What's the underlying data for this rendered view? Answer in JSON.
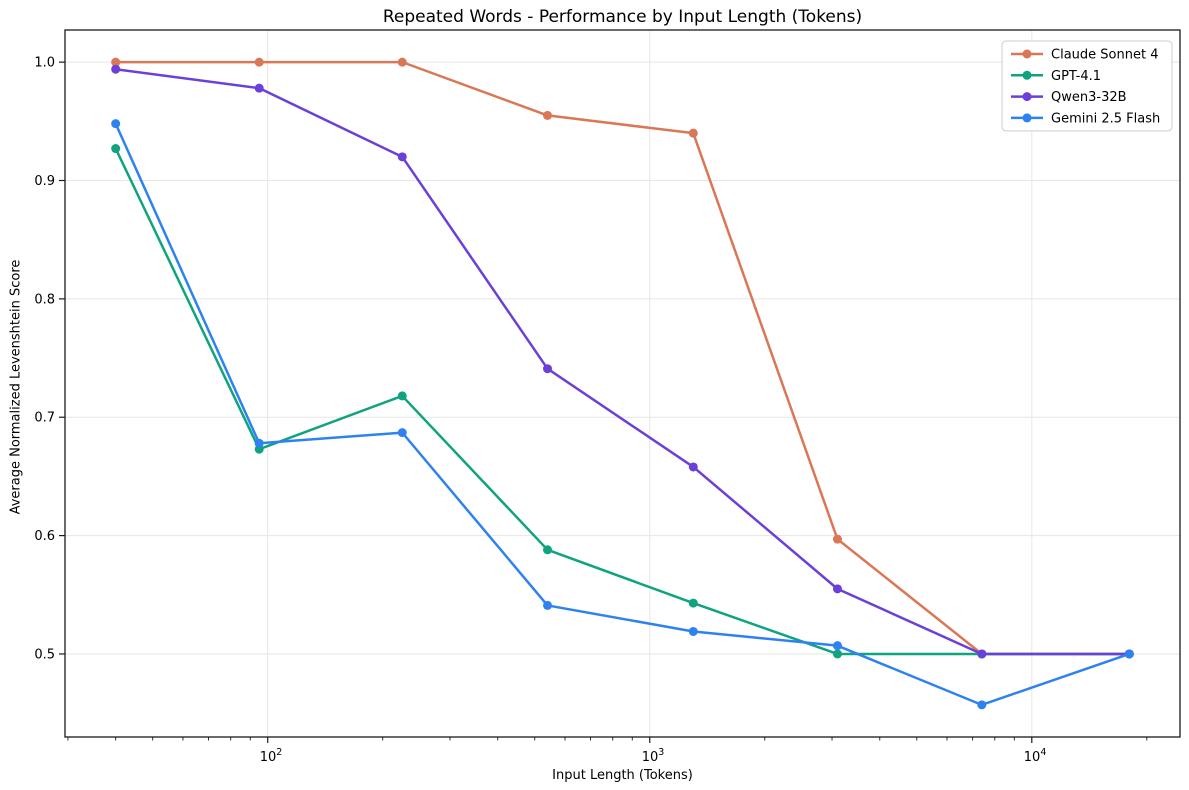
{
  "chart_data": {
    "type": "line",
    "title": "Repeated Words - Performance by Input Length (Tokens)",
    "xlabel": "Input Length (Tokens)",
    "ylabel": "Average Normalized Levenshtein Score",
    "x_scale": "log",
    "x": [
      40,
      95,
      225,
      540,
      1300,
      3100,
      7400,
      18000
    ],
    "series": [
      {
        "name": "Claude Sonnet 4",
        "color": "#D97757",
        "values": [
          1.0,
          1.0,
          1.0,
          0.955,
          0.94,
          0.597,
          0.5,
          0.5
        ]
      },
      {
        "name": "GPT-4.1",
        "color": "#10A37F",
        "values": [
          0.927,
          0.673,
          0.718,
          0.588,
          0.543,
          0.5,
          0.5,
          0.5
        ]
      },
      {
        "name": "Qwen3-32B",
        "color": "#6B40D8",
        "values": [
          0.994,
          0.978,
          0.92,
          0.741,
          0.658,
          0.555,
          0.5,
          0.5
        ]
      },
      {
        "name": "Gemini 2.5 Flash",
        "color": "#2E82F0",
        "values": [
          0.948,
          0.678,
          0.687,
          0.541,
          0.519,
          0.507,
          0.457,
          0.5
        ]
      }
    ],
    "y_ticks": [
      0.5,
      0.6,
      0.7,
      0.8,
      0.9,
      1.0
    ],
    "x_major_tick_exponents": [
      2,
      3,
      4
    ],
    "x_major_tick_base": "10",
    "grid": true,
    "legend_position": "upper right",
    "style": {
      "background": "#ffffff",
      "grid_color": "#e6e6e6",
      "spine_color": "#1a1a1a",
      "tick_color": "#1a1a1a",
      "text_color": "#000000",
      "legend_border_color": "#cccccc",
      "legend_background": "#ffffff"
    }
  }
}
